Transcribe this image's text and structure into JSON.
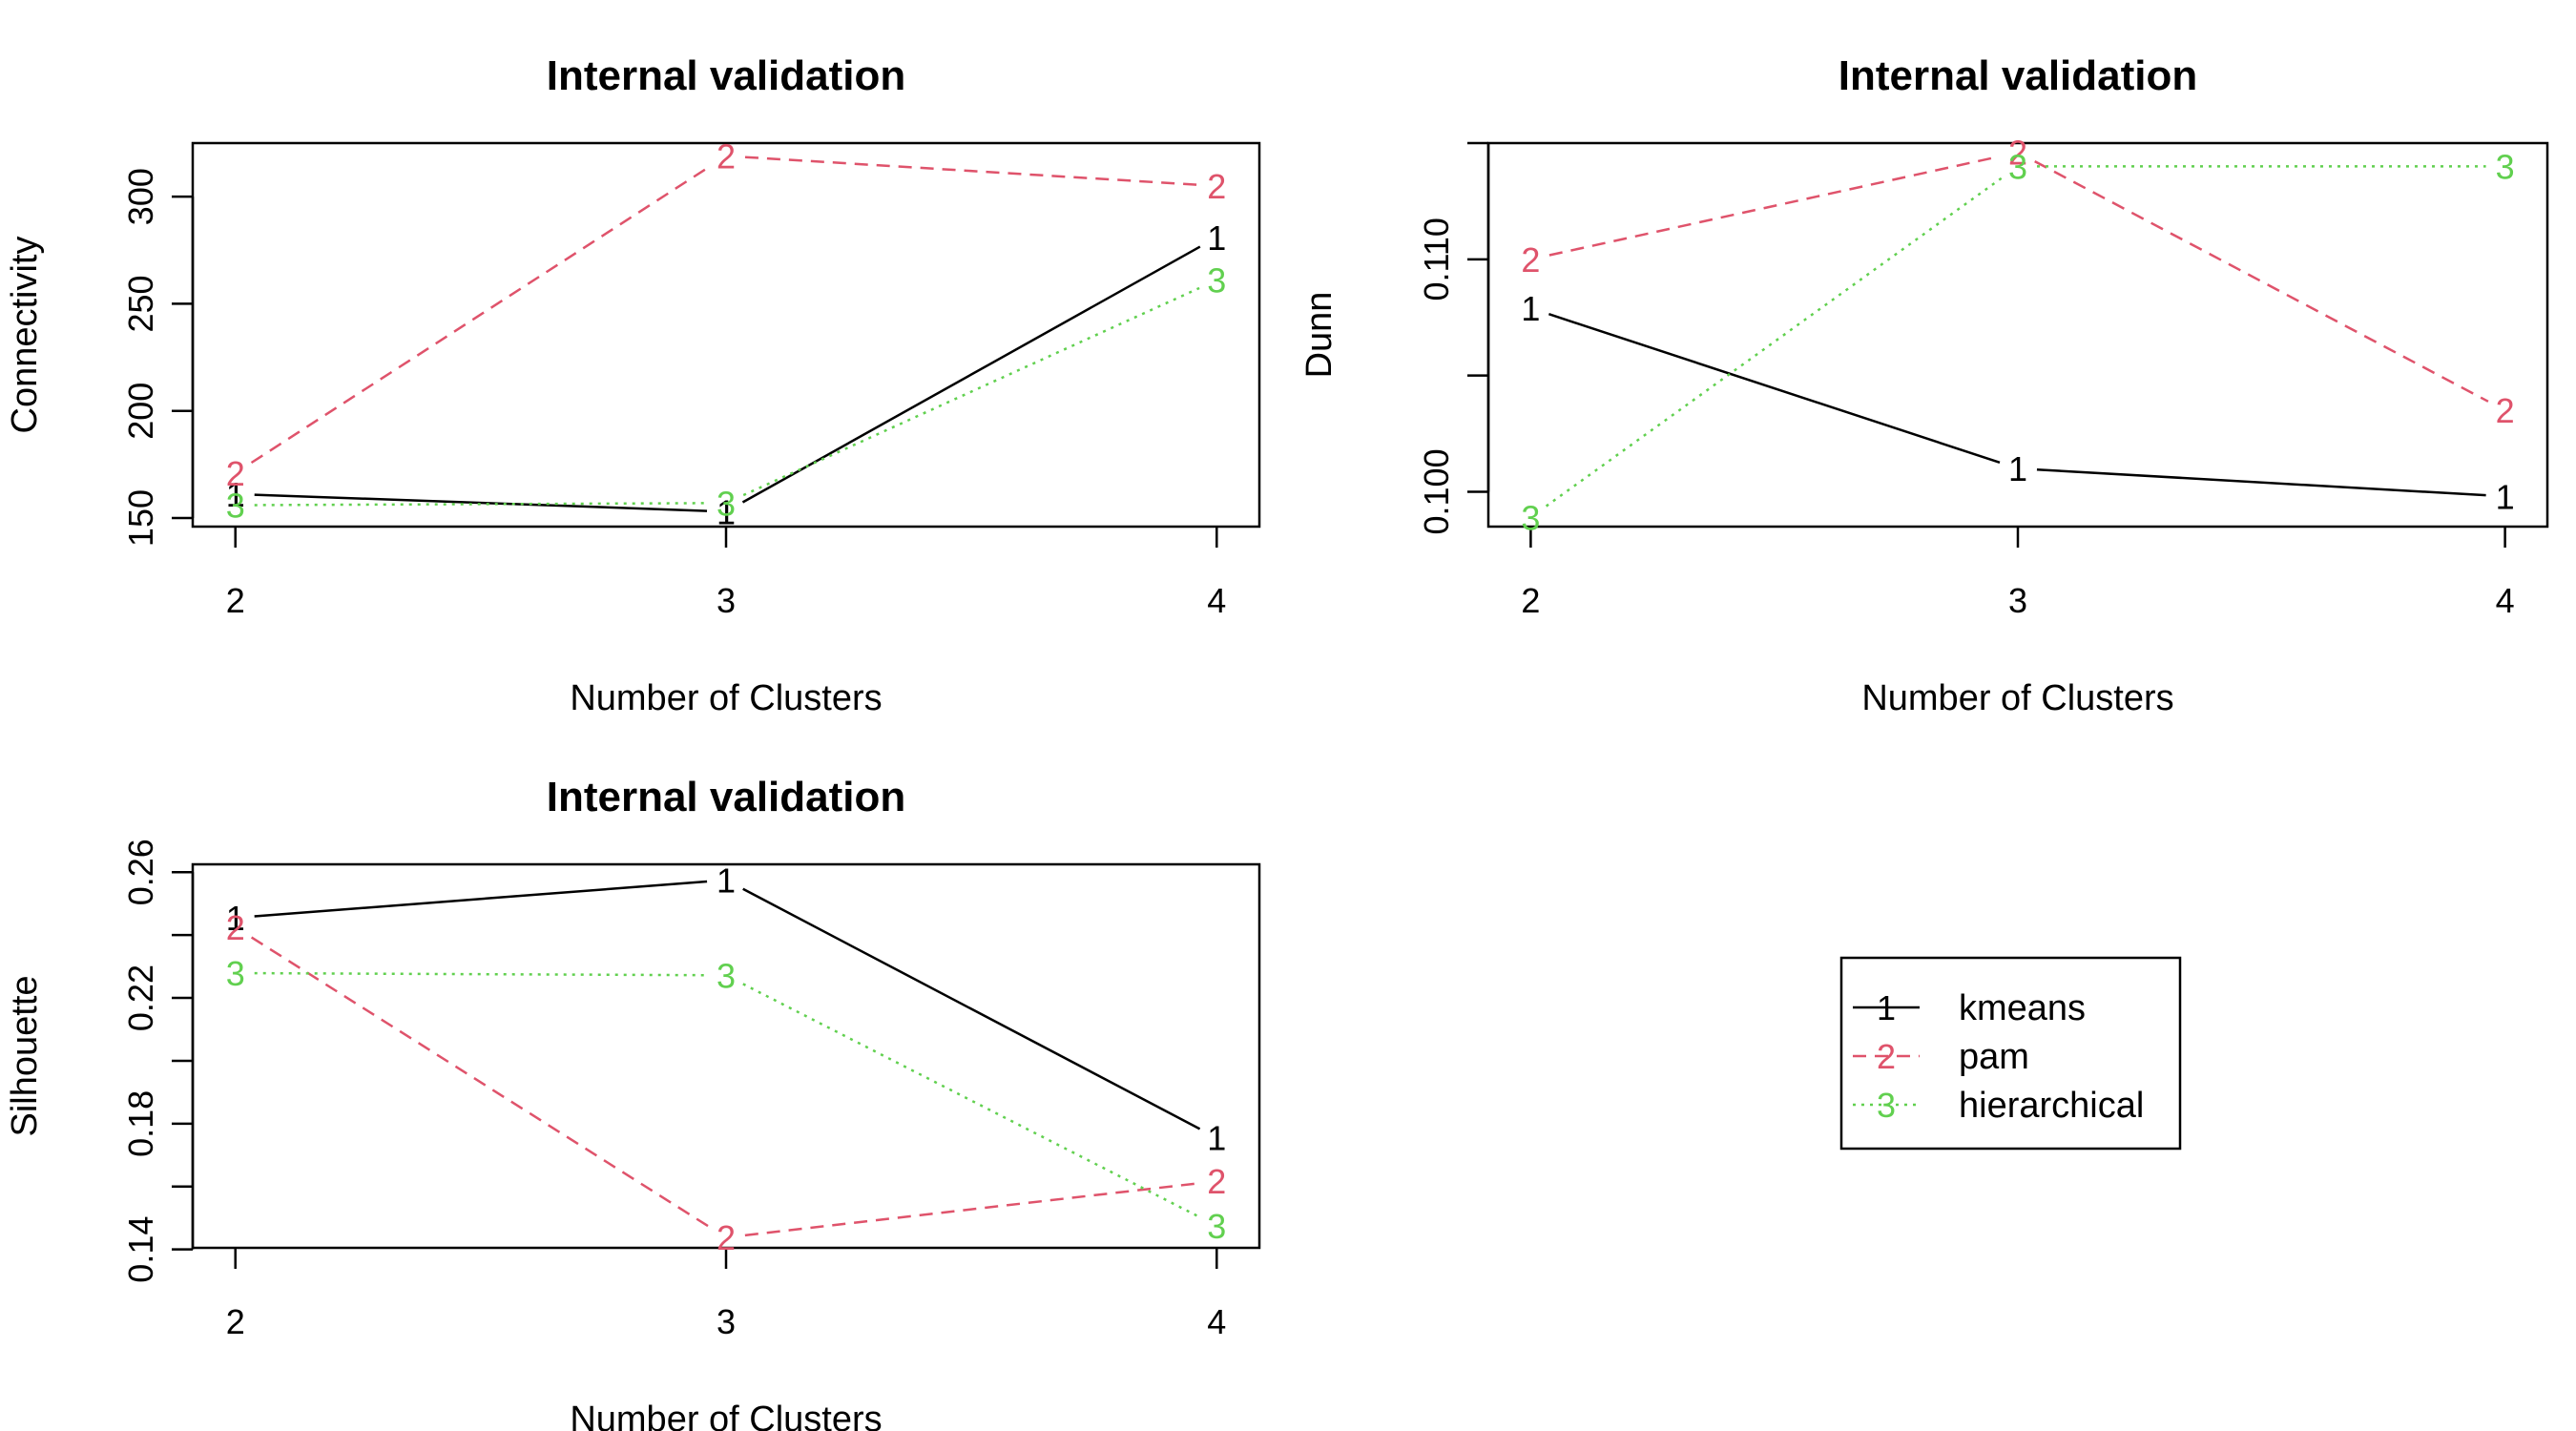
{
  "chart_data": [
    {
      "type": "line",
      "title": "Internal validation",
      "xlabel": "Number of Clusters",
      "ylabel": "Connectivity",
      "x": [
        2,
        3,
        4
      ],
      "xticks": [
        "2",
        "3",
        "4"
      ],
      "yticks": [
        150,
        200,
        250,
        300
      ],
      "ylim": [
        146,
        325
      ],
      "series": [
        {
          "symbol": "1",
          "color": "#000000",
          "dash": "solid",
          "values": [
            161.2,
            153.0,
            281.0
          ]
        },
        {
          "symbol": "2",
          "color": "#DF536B",
          "dash": "dashed",
          "values": [
            171.0,
            319.0,
            305.0
          ]
        },
        {
          "symbol": "3",
          "color": "#61D04F",
          "dash": "dotted",
          "values": [
            156.0,
            157.0,
            261.0
          ]
        }
      ]
    },
    {
      "type": "line",
      "title": "Internal validation",
      "xlabel": "Number of Clusters",
      "ylabel": "Dunn",
      "x": [
        2,
        3,
        4
      ],
      "xticks": [
        "2",
        "3",
        "4"
      ],
      "yticks": [
        0.1,
        0.105,
        0.11,
        0.115
      ],
      "ytick_labels": [
        "0.100",
        "",
        "0.110",
        ""
      ],
      "ylim": [
        0.0985,
        0.115
      ],
      "series": [
        {
          "symbol": "1",
          "color": "#000000",
          "dash": "solid",
          "values": [
            0.1079,
            0.101,
            0.0998
          ]
        },
        {
          "symbol": "2",
          "color": "#DF536B",
          "dash": "dashed",
          "values": [
            0.11,
            0.1146,
            0.1035
          ]
        },
        {
          "symbol": "3",
          "color": "#61D04F",
          "dash": "dotted",
          "values": [
            0.0989,
            0.114,
            0.114
          ]
        }
      ]
    },
    {
      "type": "line",
      "title": "Internal validation",
      "xlabel": "Number of Clusters",
      "ylabel": "Silhouette",
      "x": [
        2,
        3,
        4
      ],
      "xticks": [
        "2",
        "3",
        "4"
      ],
      "yticks": [
        0.14,
        0.16,
        0.18,
        0.2,
        0.22,
        0.24,
        0.26
      ],
      "ytick_labels": [
        "0.14",
        "",
        "0.18",
        "",
        "0.22",
        "",
        "0.26"
      ],
      "ylim": [
        0.1405,
        0.2625
      ],
      "series": [
        {
          "symbol": "1",
          "color": "#000000",
          "dash": "solid",
          "values": [
            0.2455,
            0.2575,
            0.1755
          ]
        },
        {
          "symbol": "2",
          "color": "#DF536B",
          "dash": "dashed",
          "values": [
            0.2425,
            0.1438,
            0.1617
          ]
        },
        {
          "symbol": "3",
          "color": "#61D04F",
          "dash": "dotted",
          "values": [
            0.2279,
            0.2272,
            0.1475
          ]
        }
      ]
    }
  ],
  "legend": {
    "position": "lower-right panel",
    "items": [
      {
        "symbol": "1",
        "label": "kmeans",
        "color": "#000000",
        "dash": "solid"
      },
      {
        "symbol": "2",
        "label": "pam",
        "color": "#DF536B",
        "dash": "dashed"
      },
      {
        "symbol": "3",
        "label": "hierarchical",
        "color": "#61D04F",
        "dash": "dotted"
      }
    ]
  }
}
